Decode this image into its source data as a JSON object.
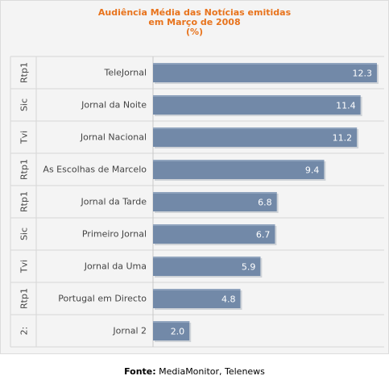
{
  "chart_data": {
    "type": "bar",
    "orientation": "horizontal",
    "title": "Audiência Média das Notícias emitidas",
    "subtitle": "em Março de 2008",
    "unit_label": "(%)",
    "categories": [
      "TeleJornal",
      "Jornal da Noite",
      "Jornal Nacional",
      "As Escolhas de Marcelo",
      "Jornal da Tarde",
      "Primeiro Jornal",
      "Jornal da Uma",
      "Portugal em Directo",
      "Jornal 2"
    ],
    "group_labels": [
      "Rtp1",
      "Sic",
      "Tvi",
      "Rtp1",
      "Rtp1",
      "Sic",
      "Tvi",
      "Rtp1",
      "2:"
    ],
    "values": [
      12.3,
      11.4,
      11.2,
      9.4,
      6.8,
      6.7,
      5.9,
      4.8,
      2.0
    ],
    "value_labels": [
      "12.3",
      "11.4",
      "11.2",
      "9.4",
      "6.8",
      "6.7",
      "5.9",
      "4.8",
      "2.0"
    ],
    "xlim": [
      0,
      12.7
    ],
    "bar_color": "#7289a8",
    "grid": true,
    "legend": "none"
  },
  "footer": {
    "source_label": "Fonte:",
    "source_text": "MediaMonitor, Telenews"
  },
  "colors": {
    "title": "#e8731c",
    "bar": "#7289a8",
    "value_text": "#ffffff"
  }
}
